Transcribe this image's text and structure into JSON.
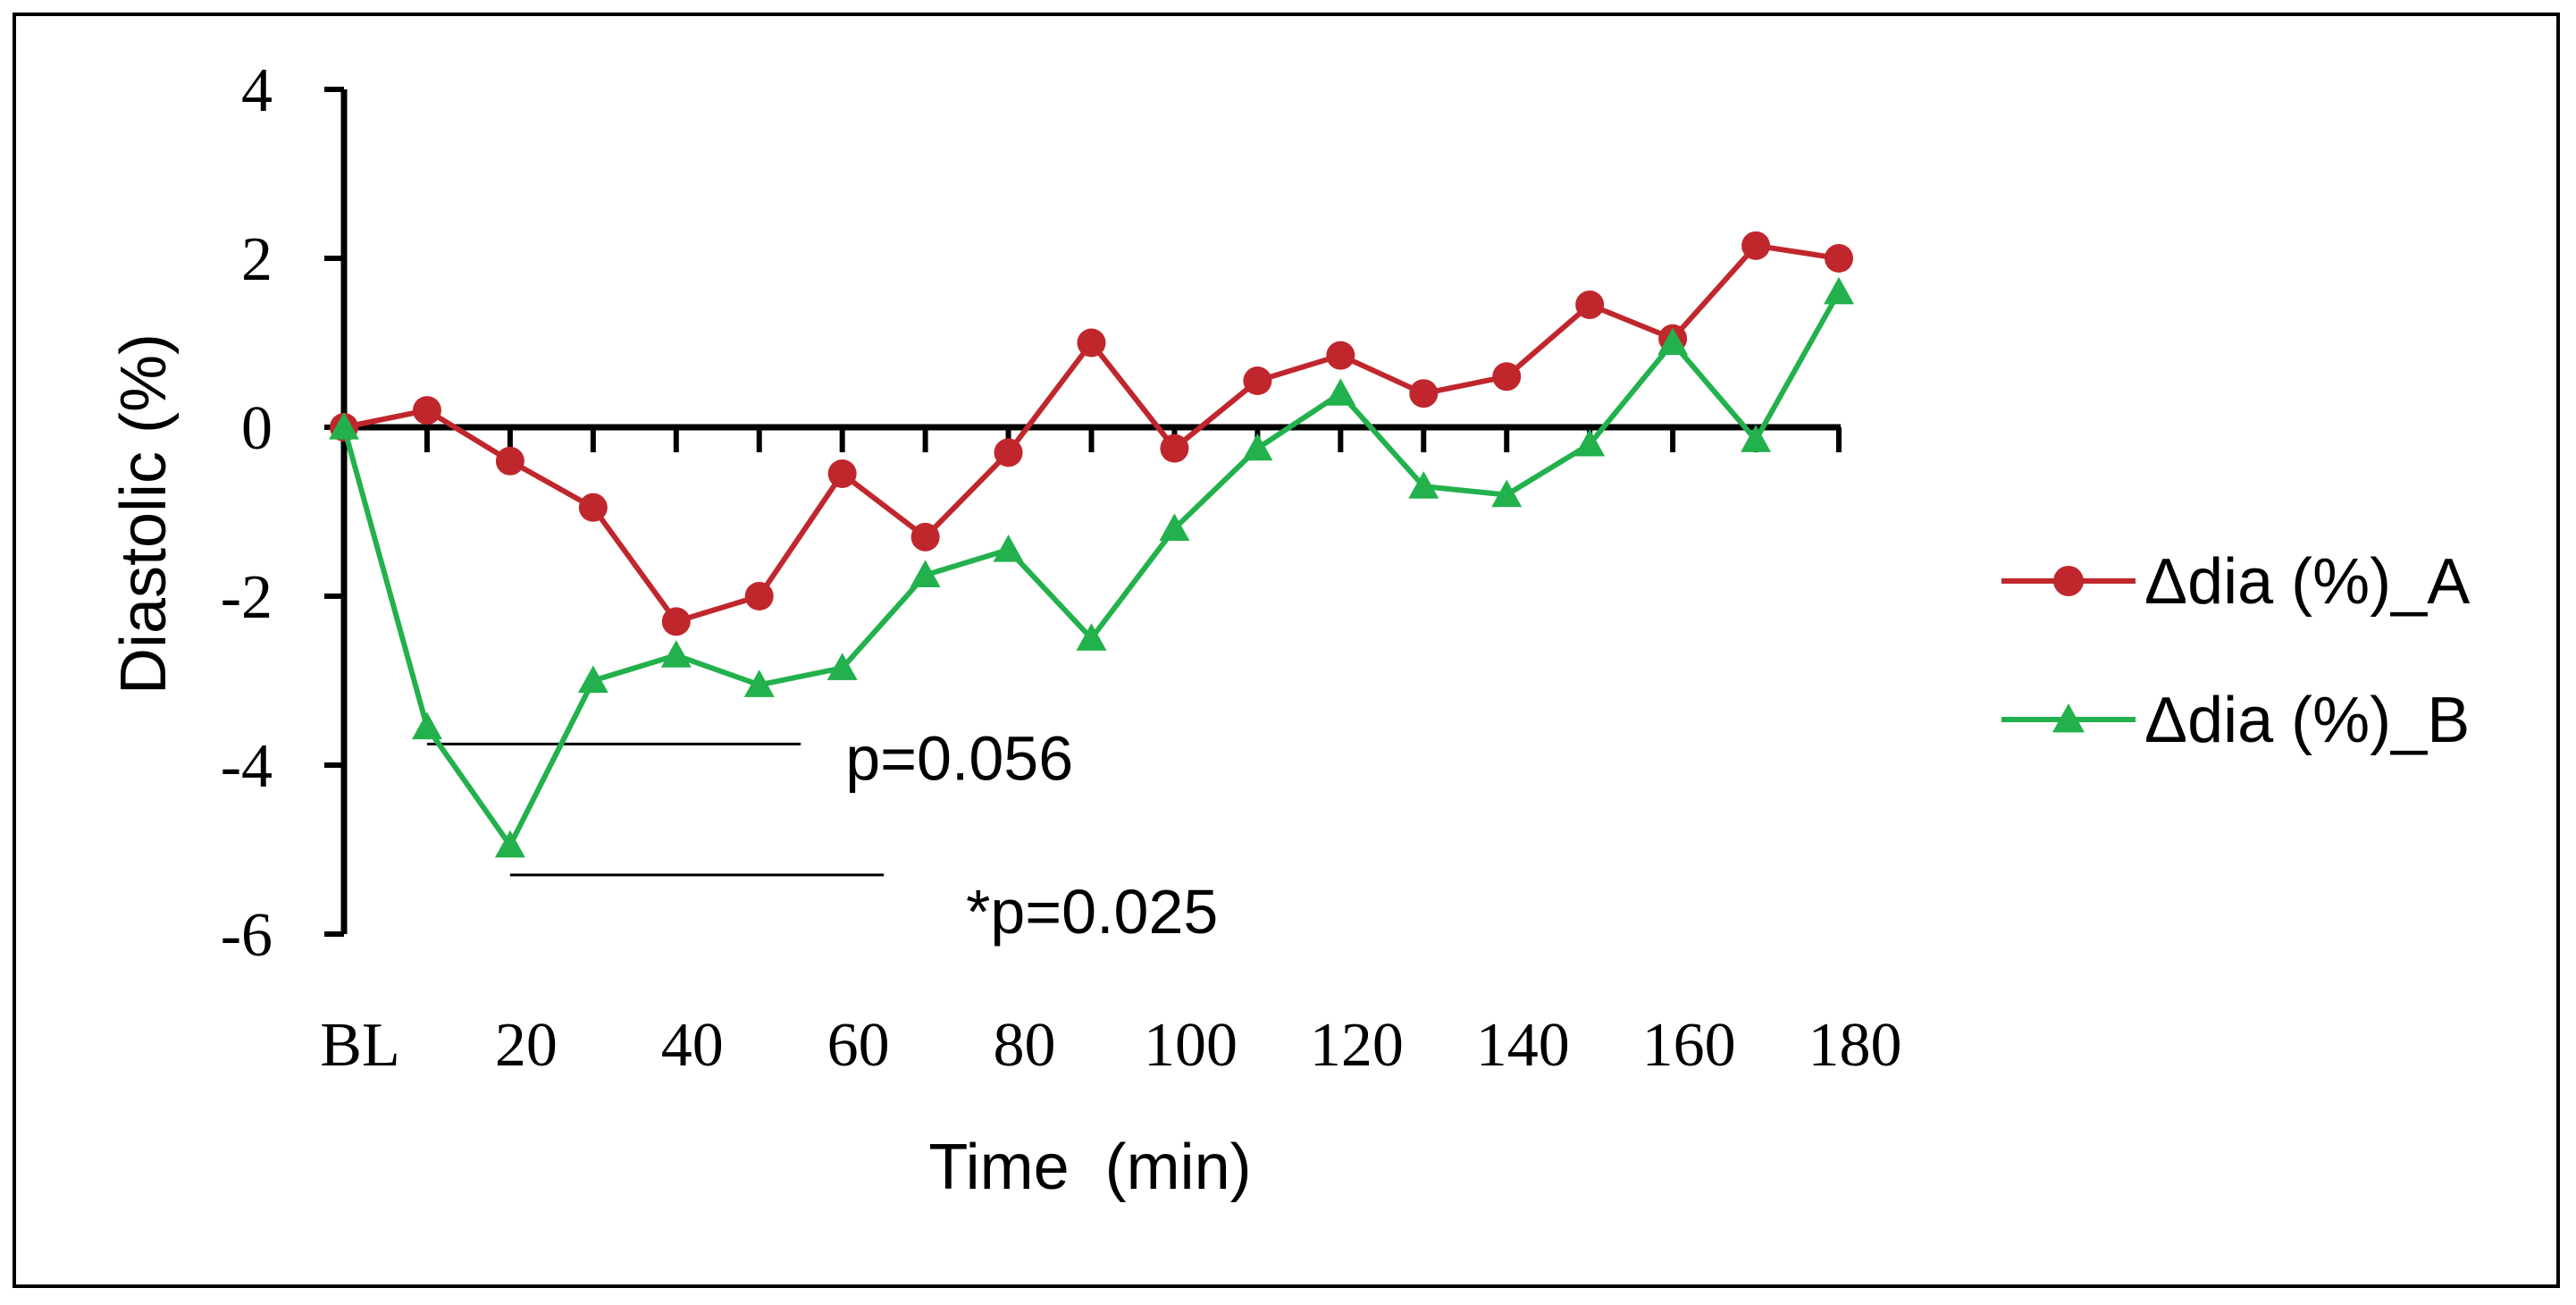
{
  "chart_data": {
    "type": "line",
    "xlabel": "Time  (min)",
    "ylabel": "Diastolic (%)",
    "ylim": [
      -6,
      4
    ],
    "yticks": [
      4,
      2,
      0,
      -2,
      -4,
      -6
    ],
    "x_positions": [
      0,
      10,
      20,
      30,
      40,
      50,
      60,
      70,
      80,
      90,
      100,
      110,
      120,
      130,
      140,
      150,
      160,
      170,
      180
    ],
    "xlim": [
      0,
      180
    ],
    "xtick_labels": [
      {
        "x": 0,
        "label": "BL"
      },
      {
        "x": 20,
        "label": "20"
      },
      {
        "x": 40,
        "label": "40"
      },
      {
        "x": 60,
        "label": "60"
      },
      {
        "x": 80,
        "label": "80"
      },
      {
        "x": 100,
        "label": "100"
      },
      {
        "x": 120,
        "label": "120"
      },
      {
        "x": 140,
        "label": "140"
      },
      {
        "x": 160,
        "label": "160"
      },
      {
        "x": 180,
        "label": "180"
      }
    ],
    "series": [
      {
        "name": "Δdia (%)_A",
        "color": "#c0272d",
        "marker": "circle",
        "values": [
          0,
          0.2,
          -0.4,
          -0.95,
          -2.3,
          -2.0,
          -0.55,
          -1.3,
          -0.3,
          1.0,
          -0.25,
          0.55,
          0.85,
          0.4,
          0.6,
          1.45,
          1.05,
          2.15,
          2.0
        ]
      },
      {
        "name": "Δdia (%)_B",
        "color": "#22b14c",
        "marker": "triangle",
        "values": [
          0,
          -3.55,
          -4.95,
          -3.0,
          -2.7,
          -3.05,
          -2.85,
          -1.75,
          -1.45,
          -2.5,
          -1.2,
          -0.25,
          0.4,
          -0.7,
          -0.8,
          -0.2,
          1.0,
          -0.15,
          1.6
        ]
      }
    ],
    "annotations": [
      {
        "text": "p=0.056",
        "x_start": 10,
        "x_end": 55,
        "y": -3.75
      },
      {
        "text": "*p=0.025",
        "x_start": 20,
        "x_end": 65,
        "y": -5.3
      }
    ],
    "legend_position": "right"
  }
}
